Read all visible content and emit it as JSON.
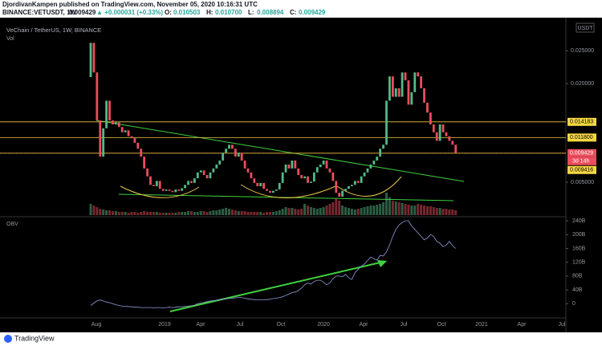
{
  "header": {
    "publisher": "DjordivanKampen published on TradingView.com, November 05, 2020 10:16:31 UTC",
    "symbol": "BINANCE:VETUSDT, 1W",
    "price": "0.009429",
    "change": "▲ +0.000031 (+0.33%)",
    "ohlc": [
      {
        "label": "O:",
        "value": "0.010503"
      },
      {
        "label": "H:",
        "value": "0.010700"
      },
      {
        "label": "L:",
        "value": "0.008894"
      },
      {
        "label": "C:",
        "value": "0.009429"
      }
    ]
  },
  "chart_data": [
    {
      "type": "candlestick",
      "title": "VeChain / TetherUS, 1W, BINANCE",
      "volume_label": "Vol",
      "currency": "USDT",
      "up_color": "#53b987",
      "down_color": "#eb4d5c",
      "first_open": 0.021,
      "closes": [
        0.0262,
        0.0217,
        0.0144,
        0.0089,
        0.0132,
        0.0174,
        0.0144,
        0.0138,
        0.0141,
        0.0134,
        0.0126,
        0.0129,
        0.012,
        0.0117,
        0.011,
        0.0101,
        0.0089,
        0.0071,
        0.0059,
        0.0046,
        0.0044,
        0.0052,
        0.004,
        0.0037,
        0.0039,
        0.0037,
        0.0035,
        0.0039,
        0.0037,
        0.0041,
        0.0046,
        0.0052,
        0.0049,
        0.0056,
        0.0065,
        0.0068,
        0.0061,
        0.0056,
        0.0065,
        0.0071,
        0.0077,
        0.0083,
        0.0095,
        0.0101,
        0.0107,
        0.0101,
        0.0089,
        0.0095,
        0.0083,
        0.0071,
        0.0065,
        0.0056,
        0.0049,
        0.0044,
        0.0049,
        0.004,
        0.0037,
        0.0034,
        0.0037,
        0.0039,
        0.0049,
        0.0065,
        0.0077,
        0.0071,
        0.0083,
        0.0071,
        0.0061,
        0.0056,
        0.0059,
        0.0049,
        0.0051,
        0.0065,
        0.0073,
        0.0077,
        0.0083,
        0.0071,
        0.0065,
        0.0052,
        0.0034,
        0.0028,
        0.0037,
        0.004,
        0.0044,
        0.0046,
        0.0052,
        0.0049,
        0.0059,
        0.0065,
        0.0071,
        0.0077,
        0.0083,
        0.0089,
        0.0101,
        0.0107,
        0.0174,
        0.0211,
        0.018,
        0.0193,
        0.018,
        0.0217,
        0.0205,
        0.0168,
        0.0187,
        0.0217,
        0.0211,
        0.0193,
        0.0171,
        0.0156,
        0.0138,
        0.0126,
        0.0113,
        0.0138,
        0.0126,
        0.012,
        0.0113,
        0.0107,
        0.009429
      ],
      "volume": [
        14,
        12,
        10,
        8,
        7,
        6,
        6,
        5,
        5,
        4,
        4,
        4,
        3,
        4,
        4,
        3,
        4,
        5,
        4,
        4,
        4,
        4,
        3,
        3,
        3,
        3,
        3,
        3,
        4,
        4,
        4,
        5,
        5,
        4,
        4,
        5,
        5,
        4,
        5,
        6,
        6,
        7,
        8,
        9,
        8,
        7,
        6,
        5,
        5,
        5,
        4,
        4,
        4,
        4,
        4,
        3,
        4,
        4,
        4,
        5,
        6,
        8,
        10,
        9,
        9,
        8,
        7,
        8,
        14,
        12,
        10,
        9,
        8,
        9,
        10,
        12,
        14,
        16,
        20,
        18,
        12,
        10,
        9,
        8,
        7,
        8,
        9,
        10,
        11,
        12,
        12,
        13,
        14,
        16,
        28,
        22,
        18,
        17,
        16,
        15,
        14,
        13,
        12,
        12,
        14,
        13,
        12,
        11,
        11,
        10,
        9,
        9,
        8,
        8,
        7,
        7,
        6
      ],
      "ylim": [
        0,
        0.0293
      ],
      "yticks": [
        {
          "value": 0.005,
          "label": "0.005000"
        },
        {
          "value": 0.02,
          "label": "0.020000"
        },
        {
          "value": 0.025,
          "label": "0.025000"
        }
      ],
      "levels": [
        {
          "value": 0.014183,
          "label": "0.014183"
        },
        {
          "value": 0.0118,
          "label": "0.011800"
        },
        {
          "value": 0.009416,
          "label": "0.009416"
        }
      ],
      "countdown": "3d 14h"
    },
    {
      "type": "line",
      "title": "OBV",
      "color": "#8f9bd6",
      "values": [
        -5,
        2,
        8,
        11,
        8,
        5,
        3,
        0,
        -3,
        -5,
        -7,
        -8,
        -8,
        -9,
        -10,
        -10,
        -11,
        -11,
        -11,
        -11,
        -12,
        -11,
        -11,
        -12,
        -11,
        -10,
        -11,
        -10,
        -9,
        -9,
        -8,
        -7,
        -6,
        -4,
        0,
        2,
        4,
        6,
        8,
        9,
        10,
        12,
        13,
        14,
        15,
        16,
        17,
        18,
        18,
        16,
        14,
        13,
        12,
        11,
        11,
        11,
        12,
        13,
        15,
        16,
        18,
        20,
        24,
        28,
        32,
        34,
        38,
        45,
        55,
        60,
        57,
        64,
        68,
        68,
        62,
        55,
        60,
        72,
        80,
        80,
        78,
        85,
        75,
        70,
        90,
        100,
        108,
        115,
        125,
        135,
        130,
        126,
        140,
        138,
        150,
        170,
        195,
        215,
        228,
        235,
        240,
        240,
        225,
        215,
        205,
        195,
        185,
        190,
        200,
        195,
        180,
        175,
        165,
        170,
        180,
        168,
        160
      ],
      "ylim": [
        -41,
        247
      ],
      "yticks": [
        0,
        {
          "value": 40,
          "label": "40B"
        },
        {
          "value": 80,
          "label": "80B"
        },
        {
          "value": 120,
          "label": "120B"
        },
        {
          "value": 160,
          "label": "160B"
        },
        {
          "value": 200,
          "label": "200B"
        },
        {
          "value": 240,
          "label": "240B"
        }
      ]
    }
  ],
  "time_labels": [
    "Aug",
    "2019",
    "Apr",
    "Jul",
    "Oct",
    "2020",
    "Apr",
    "Jul",
    "Oct",
    "2021",
    "Apr",
    "Jul"
  ],
  "branding": "TradingView"
}
